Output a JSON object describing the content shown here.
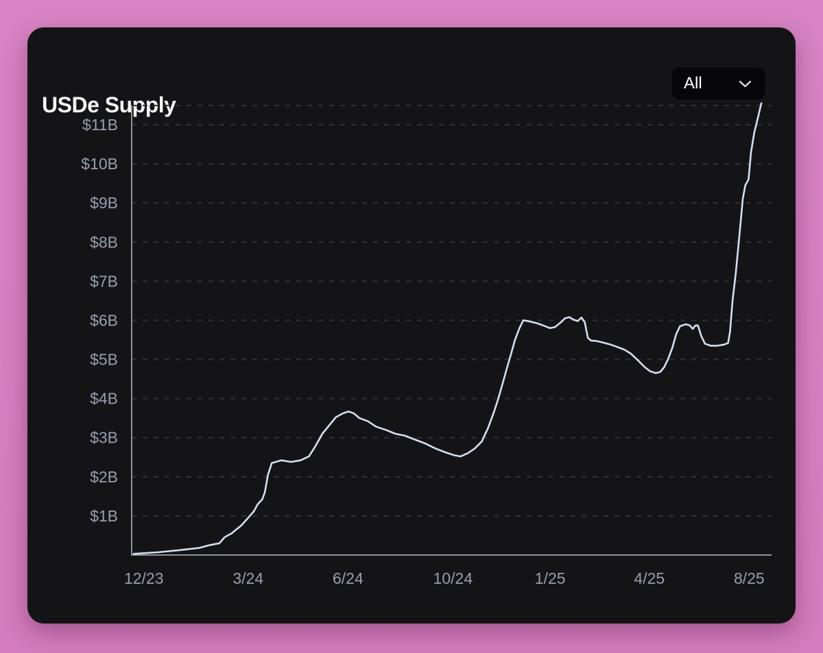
{
  "card": {
    "title": "USDe Supply",
    "range_selector": {
      "selected_label": "All",
      "chevron_icon": "chevron-down"
    }
  },
  "colors": {
    "page_background": "#d67fc0",
    "card_background": "#141417",
    "dropdown_background": "#070709",
    "title_text": "#f4f4f6",
    "axis_line": "#8d929c",
    "tick_label": "#999fae",
    "gridline": "#303037",
    "series_line": "#d6dff0"
  },
  "chart_data": {
    "type": "line",
    "title": "USDe Supply",
    "series_name": "USDe supply",
    "unit": "USD billions",
    "ylim": [
      0,
      11.49
    ],
    "grid": {
      "horizontal_dashed": true,
      "top_boundary_line": true,
      "vertical": false
    },
    "legend": "none",
    "y_ticks": [
      {
        "label": "$1B",
        "value": 1
      },
      {
        "label": "$2B",
        "value": 2
      },
      {
        "label": "$3B",
        "value": 3
      },
      {
        "label": "$4B",
        "value": 4
      },
      {
        "label": "$5B",
        "value": 5
      },
      {
        "label": "$6B",
        "value": 6
      },
      {
        "label": "$7B",
        "value": 7
      },
      {
        "label": "$8B",
        "value": 8
      },
      {
        "label": "$9B",
        "value": 9
      },
      {
        "label": "$10B",
        "value": 10
      },
      {
        "label": "$11B",
        "value": 11
      }
    ],
    "x_ticks": [
      {
        "label": "12/23",
        "f": 0.019
      },
      {
        "label": "3/24",
        "f": 0.182
      },
      {
        "label": "6/24",
        "f": 0.338
      },
      {
        "label": "10/24",
        "f": 0.502
      },
      {
        "label": "1/25",
        "f": 0.654
      },
      {
        "label": "4/25",
        "f": 0.809
      },
      {
        "label": "8/25",
        "f": 0.965
      }
    ],
    "points_format": "[fraction_of_x_axis_0to1, supply_in_billions_usd]",
    "points": [
      [
        0.003,
        0.03
      ],
      [
        0.041,
        0.07
      ],
      [
        0.073,
        0.12
      ],
      [
        0.105,
        0.18
      ],
      [
        0.121,
        0.25
      ],
      [
        0.137,
        0.3
      ],
      [
        0.145,
        0.45
      ],
      [
        0.15,
        0.5
      ],
      [
        0.156,
        0.55
      ],
      [
        0.161,
        0.62
      ],
      [
        0.171,
        0.75
      ],
      [
        0.182,
        0.95
      ],
      [
        0.191,
        1.12
      ],
      [
        0.197,
        1.3
      ],
      [
        0.204,
        1.42
      ],
      [
        0.208,
        1.6
      ],
      [
        0.213,
        2.05
      ],
      [
        0.219,
        2.35
      ],
      [
        0.234,
        2.42
      ],
      [
        0.249,
        2.38
      ],
      [
        0.264,
        2.42
      ],
      [
        0.277,
        2.52
      ],
      [
        0.287,
        2.78
      ],
      [
        0.298,
        3.1
      ],
      [
        0.309,
        3.32
      ],
      [
        0.319,
        3.52
      ],
      [
        0.33,
        3.62
      ],
      [
        0.339,
        3.67
      ],
      [
        0.347,
        3.62
      ],
      [
        0.356,
        3.5
      ],
      [
        0.369,
        3.42
      ],
      [
        0.382,
        3.28
      ],
      [
        0.397,
        3.2
      ],
      [
        0.412,
        3.1
      ],
      [
        0.427,
        3.05
      ],
      [
        0.443,
        2.95
      ],
      [
        0.459,
        2.85
      ],
      [
        0.475,
        2.72
      ],
      [
        0.491,
        2.62
      ],
      [
        0.504,
        2.55
      ],
      [
        0.514,
        2.52
      ],
      [
        0.525,
        2.6
      ],
      [
        0.536,
        2.72
      ],
      [
        0.547,
        2.9
      ],
      [
        0.557,
        3.25
      ],
      [
        0.566,
        3.65
      ],
      [
        0.573,
        4.0
      ],
      [
        0.58,
        4.4
      ],
      [
        0.586,
        4.75
      ],
      [
        0.593,
        5.15
      ],
      [
        0.599,
        5.5
      ],
      [
        0.606,
        5.8
      ],
      [
        0.612,
        6.0
      ],
      [
        0.622,
        5.97
      ],
      [
        0.632,
        5.93
      ],
      [
        0.643,
        5.87
      ],
      [
        0.654,
        5.8
      ],
      [
        0.662,
        5.83
      ],
      [
        0.671,
        5.95
      ],
      [
        0.677,
        6.05
      ],
      [
        0.684,
        6.08
      ],
      [
        0.69,
        6.02
      ],
      [
        0.697,
        5.98
      ],
      [
        0.703,
        6.07
      ],
      [
        0.708,
        5.95
      ],
      [
        0.713,
        5.55
      ],
      [
        0.718,
        5.48
      ],
      [
        0.727,
        5.47
      ],
      [
        0.737,
        5.43
      ],
      [
        0.748,
        5.38
      ],
      [
        0.759,
        5.32
      ],
      [
        0.77,
        5.25
      ],
      [
        0.78,
        5.15
      ],
      [
        0.791,
        4.98
      ],
      [
        0.802,
        4.8
      ],
      [
        0.81,
        4.7
      ],
      [
        0.819,
        4.65
      ],
      [
        0.826,
        4.68
      ],
      [
        0.832,
        4.8
      ],
      [
        0.838,
        5.0
      ],
      [
        0.845,
        5.3
      ],
      [
        0.851,
        5.65
      ],
      [
        0.857,
        5.85
      ],
      [
        0.866,
        5.9
      ],
      [
        0.872,
        5.87
      ],
      [
        0.877,
        5.78
      ],
      [
        0.881,
        5.87
      ],
      [
        0.885,
        5.87
      ],
      [
        0.89,
        5.6
      ],
      [
        0.896,
        5.4
      ],
      [
        0.905,
        5.35
      ],
      [
        0.915,
        5.35
      ],
      [
        0.926,
        5.38
      ],
      [
        0.932,
        5.42
      ],
      [
        0.935,
        5.7
      ],
      [
        0.939,
        6.5
      ],
      [
        0.944,
        7.2
      ],
      [
        0.95,
        8.2
      ],
      [
        0.955,
        9.1
      ],
      [
        0.959,
        9.45
      ],
      [
        0.964,
        9.6
      ],
      [
        0.968,
        10.3
      ],
      [
        0.973,
        10.8
      ],
      [
        0.979,
        11.2
      ],
      [
        0.984,
        11.55
      ]
    ]
  }
}
